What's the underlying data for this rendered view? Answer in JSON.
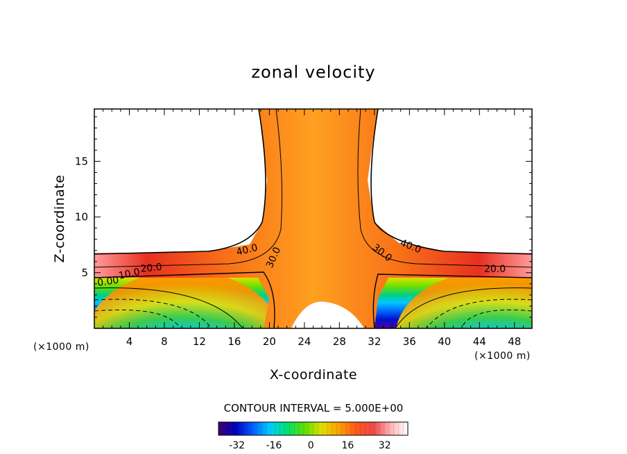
{
  "chart_data": {
    "type": "heatmap",
    "title": "zonal velocity",
    "xlabel": "X-coordinate",
    "ylabel": "Z-coordinate",
    "x_unit": "(×1000 m)",
    "z_unit": "(×1000 m)",
    "x_ticks": [
      4,
      8,
      12,
      16,
      20,
      24,
      28,
      32,
      36,
      40,
      44,
      48
    ],
    "z_ticks": [
      5,
      10,
      15
    ],
    "xlim": [
      0,
      50
    ],
    "ylim": [
      0,
      19.7
    ],
    "contour_interval_label": "CONTOUR INTERVAL = 5.000E+00",
    "contour_interval": 5.0,
    "contour_labels": [
      "0.00",
      "10.0",
      "20.0",
      "40.0",
      "30.0",
      "30.0",
      "40.0",
      "20.0"
    ],
    "colorbar": {
      "ticks": [
        "-32",
        "-16",
        "0",
        "16",
        "32"
      ],
      "min": -40,
      "max": 42
    },
    "colormap": [
      "#400070",
      "#0000c0",
      "#0060ff",
      "#00d0ff",
      "#00e070",
      "#60e000",
      "#e0e000",
      "#ffa000",
      "#ff5a1a",
      "#f04848",
      "#ffb4b4",
      "#ffffff"
    ],
    "notes_visible": "Westerly jet above z≈7 confined to a vertical column near x≈21–32; strong easterlies near the surface at both lateral edges."
  }
}
